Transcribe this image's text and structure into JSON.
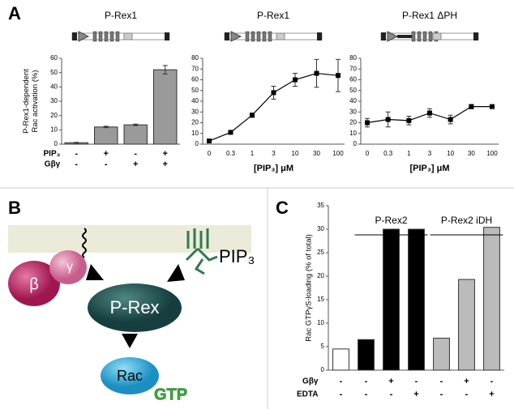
{
  "panels": [
    "A",
    "B",
    "C"
  ],
  "chart_data": [
    {
      "type": "bar",
      "title": "P-Rex1",
      "ylabel": [
        "P-Rex1-dependent",
        "Rac activation (%)"
      ],
      "values": [
        1,
        12,
        13.5,
        52
      ],
      "errors": [
        0.3,
        0.5,
        0.5,
        3
      ],
      "color": "#9a9a9a",
      "rows": [
        {
          "label": "PIP₃",
          "values": [
            "-",
            "+",
            "-",
            "+"
          ]
        },
        {
          "label": "Gβγ",
          "values": [
            "-",
            "-",
            "+",
            "+"
          ]
        }
      ],
      "ylim": [
        0,
        60
      ],
      "yticks": [
        0,
        10,
        20,
        30,
        40,
        50,
        60
      ]
    },
    {
      "type": "line",
      "title": "P-Rex1",
      "xlabel": "[PIP₃] μM",
      "categories": [
        "0",
        "0.3",
        "1",
        "3",
        "10",
        "30",
        "100"
      ],
      "values": [
        3,
        11,
        27,
        48,
        60,
        66,
        64
      ],
      "errors": [
        1,
        1,
        2,
        6,
        6,
        13,
        15
      ],
      "color": "#000000",
      "ylim": [
        0,
        80
      ],
      "yticks": [
        0,
        10,
        20,
        30,
        40,
        50,
        60,
        70,
        80
      ]
    },
    {
      "type": "line",
      "title": "P-Rex1 ΔPH",
      "xlabel": "[PIP₃] μM",
      "categories": [
        "0",
        "0.3",
        "1",
        "3",
        "10",
        "30",
        "100"
      ],
      "values": [
        20,
        23,
        22,
        29,
        23,
        35,
        35
      ],
      "errors": [
        4,
        7,
        4,
        4,
        4,
        2,
        1
      ],
      "color": "#000000",
      "ylim": [
        0,
        80
      ],
      "yticks": [
        0,
        10,
        20,
        30,
        40,
        50,
        60,
        70,
        80
      ]
    },
    {
      "type": "bar",
      "ylabel": [
        "Rac GTPγS-loading (% of total)"
      ],
      "values": [
        4.5,
        6.5,
        30,
        30,
        6.8,
        19.3,
        30.4
      ],
      "colors": [
        "#ffffff",
        "#000000",
        "#000000",
        "#000000",
        "#bbbbbb",
        "#bbbbbb",
        "#bbbbbb"
      ],
      "group_labels": [
        "P-Rex2",
        "P-Rex2 iDH"
      ],
      "rows": [
        {
          "label": "Gβγ",
          "values": [
            "-",
            "-",
            "+",
            "-",
            "-",
            "+",
            "-"
          ]
        },
        {
          "label": "EDTA",
          "values": [
            "-",
            "-",
            "-",
            "+",
            "-",
            "-",
            "+"
          ]
        }
      ],
      "ylim": [
        0,
        35
      ],
      "yticks": [
        0,
        5,
        10,
        15,
        20,
        25,
        30,
        35
      ]
    }
  ],
  "diagram": {
    "beta": "β",
    "gamma": "γ",
    "gef": "P-Rex",
    "gtpase": "Rac",
    "nucleotide": "GTP",
    "lipid": "PIP₃"
  }
}
